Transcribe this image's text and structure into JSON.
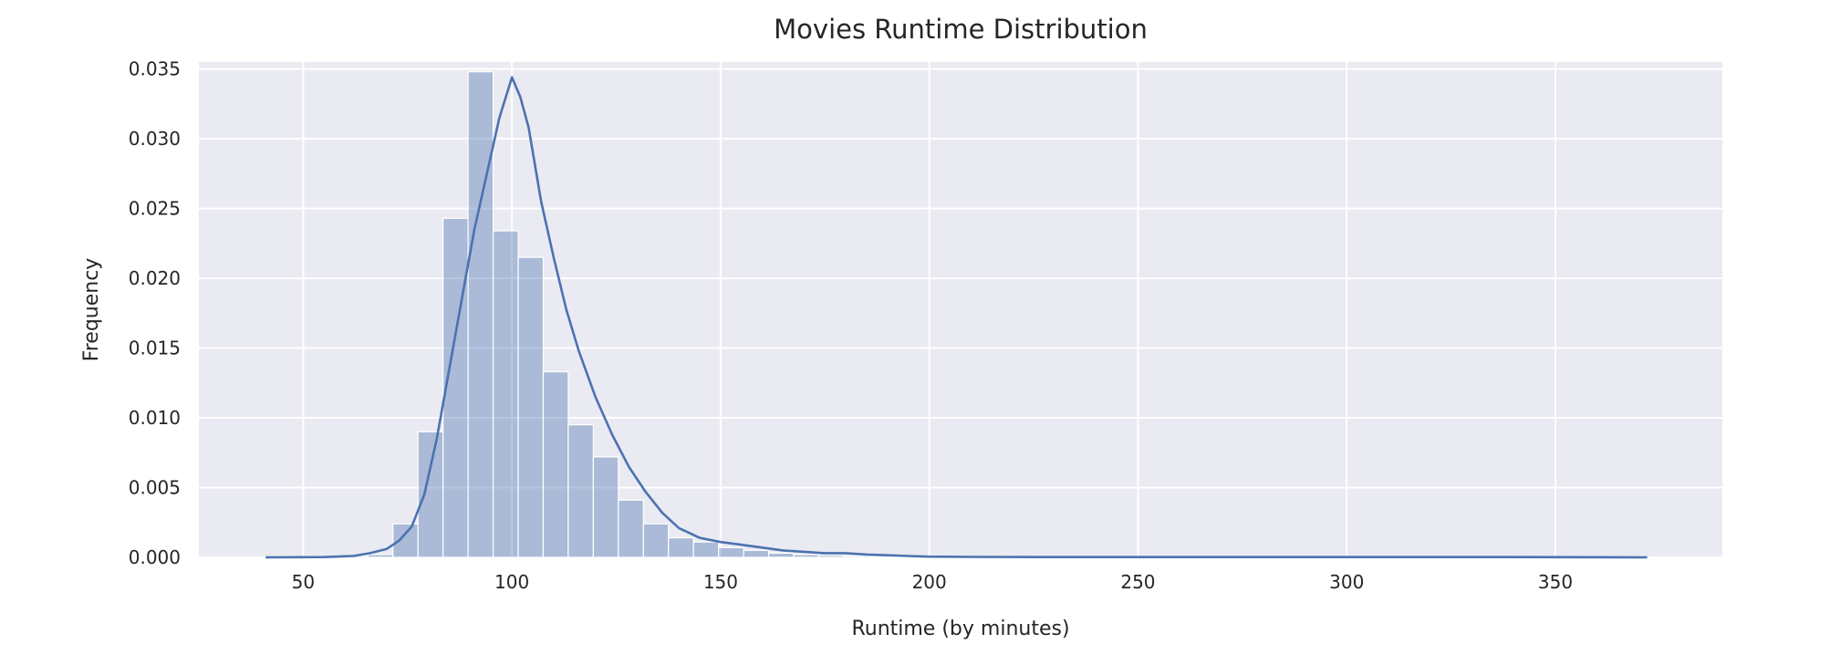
{
  "chart_data": {
    "type": "bar",
    "title": "Movies Runtime Distribution",
    "xlabel": "Runtime (by minutes)",
    "ylabel": "Frequency",
    "xlim": [
      25,
      390
    ],
    "ylim": [
      0,
      0.0355
    ],
    "x_ticks": [
      50,
      100,
      150,
      200,
      250,
      300,
      350
    ],
    "x_tick_labels": [
      "50",
      "100",
      "150",
      "200",
      "250",
      "300",
      "350"
    ],
    "y_ticks": [
      0,
      0.005,
      0.01,
      0.015,
      0.02,
      0.025,
      0.03,
      0.035
    ],
    "y_tick_labels": [
      "0.000",
      "0.005",
      "0.010",
      "0.015",
      "0.020",
      "0.025",
      "0.030",
      "0.035"
    ],
    "grid": true,
    "colors": {
      "background": "#eaeaf2",
      "grid": "#ffffff",
      "bar_fill": "#4c72b0",
      "line": "#4c72b0"
    },
    "bins": {
      "edges": [
        41.5,
        47.5,
        53.5,
        59.5,
        65.5,
        71.5,
        77.5,
        83.5,
        89.5,
        95.5,
        101.5,
        107.5,
        113.5,
        119.5,
        125.5,
        131.5,
        137.5,
        143.5,
        149.5,
        155.5,
        161.5,
        167.5,
        173.5,
        179.5,
        185.5,
        191.5,
        197.5,
        203.5,
        209.5,
        215.5,
        221.5,
        227.5,
        233.5,
        239.5,
        245.5,
        251.5,
        257.5,
        263.5,
        269.5,
        275.5,
        281.5,
        287.5,
        293.5,
        299.5,
        305.5,
        311.5,
        317.5,
        323.5,
        329.5,
        335.5,
        341.5,
        347.5,
        353.5,
        359.5,
        365.5,
        371.5
      ],
      "values": [
        3e-05,
        3e-05,
        5e-05,
        0.0001,
        0.0002,
        0.0024,
        0.009,
        0.0243,
        0.0348,
        0.0234,
        0.0215,
        0.0133,
        0.0095,
        0.0072,
        0.0041,
        0.0024,
        0.0014,
        0.0011,
        0.0007,
        0.0005,
        0.0003,
        0.0002,
        0.00015,
        0.0001,
        8e-05,
        5e-05,
        3e-05,
        3e-05,
        2e-05,
        2e-05,
        2e-05,
        2e-05,
        2e-05,
        2e-05,
        2e-05,
        2e-05,
        2e-05,
        2e-05,
        2e-05,
        2e-05,
        2e-05,
        2e-05,
        2e-05,
        2e-05,
        2e-05,
        2e-05,
        2e-05,
        2e-05,
        2e-05,
        2e-05,
        2e-05,
        2e-05,
        2e-05,
        2e-05,
        2e-05
      ]
    },
    "kde": {
      "x": [
        41,
        55,
        62,
        66,
        70,
        73,
        76,
        79,
        82,
        85,
        88,
        91,
        94,
        97,
        100,
        102,
        104,
        107,
        110,
        113,
        116,
        120,
        124,
        128,
        132,
        136,
        140,
        145,
        150,
        155,
        160,
        165,
        170,
        175,
        180,
        185,
        190,
        195,
        200,
        210,
        230,
        260,
        300,
        340,
        372
      ],
      "y": [
        0.0,
        2e-05,
        0.0001,
        0.0003,
        0.0006,
        0.0012,
        0.0022,
        0.0045,
        0.0085,
        0.0135,
        0.0185,
        0.0235,
        0.0275,
        0.0315,
        0.0344,
        0.033,
        0.0308,
        0.0255,
        0.0215,
        0.0178,
        0.0148,
        0.0115,
        0.0088,
        0.0065,
        0.0047,
        0.0032,
        0.0021,
        0.0014,
        0.0011,
        0.0009,
        0.0007,
        0.0005,
        0.0004,
        0.0003,
        0.0003,
        0.0002,
        0.00015,
        0.0001,
        5e-05,
        3e-05,
        2e-05,
        2e-05,
        2e-05,
        2e-05,
        0.0
      ]
    }
  }
}
